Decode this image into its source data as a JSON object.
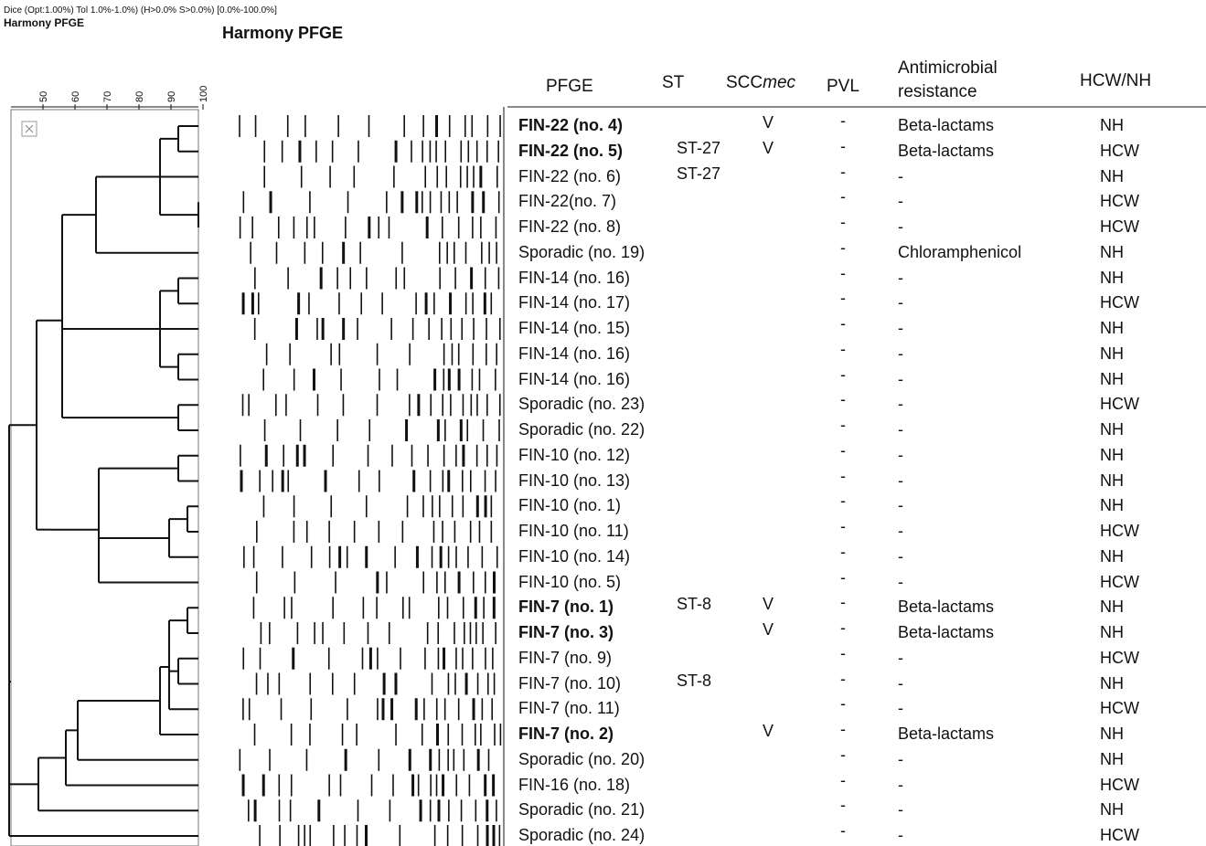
{
  "header": {
    "settings": "Dice (Opt:1.00%) Tol 1.0%-1.0%) (H>0.0% S>0.0%) [0.0%-100.0%]",
    "small_title": "Harmony PFGE",
    "big_title": "Harmony PFGE"
  },
  "scale": [
    "50",
    "60",
    "70",
    "80",
    "90",
    "100"
  ],
  "table": {
    "columns": {
      "pfge": "PFGE",
      "st": "ST",
      "sccmec": {
        "text": "SCC",
        "italic": "mec"
      },
      "pvl": "PVL",
      "resistance": "Antimicrobial resistance",
      "hcw_nh": "HCW/NH"
    },
    "rows": [
      {
        "pfge": "FIN-22 (no. 4)",
        "bold": true,
        "sccmec": "V",
        "pvl": "-",
        "resistance": "Beta-lactams",
        "hcw_nh": "NH"
      },
      {
        "pfge": "FIN-22 (no. 5)",
        "bold": true,
        "st": "ST-27",
        "sccmec": "V",
        "pvl": "-",
        "resistance": "Beta-lactams",
        "hcw_nh": "HCW"
      },
      {
        "pfge": "FIN-22 (no. 6)",
        "st": "ST-27",
        "pvl": "-",
        "resistance": "-",
        "hcw_nh": "NH"
      },
      {
        "pfge": "FIN-22(no. 7)",
        "pvl": "-",
        "resistance": "-",
        "hcw_nh": "HCW"
      },
      {
        "pfge": "FIN-22 (no. 8)",
        "pvl": "-",
        "resistance": "-",
        "hcw_nh": "HCW"
      },
      {
        "pfge": "Sporadic (no. 19)",
        "pvl": "-",
        "resistance": "Chloramphenicol",
        "hcw_nh": "NH"
      },
      {
        "pfge": "FIN-14 (no. 16)",
        "pvl": "-",
        "resistance": "-",
        "hcw_nh": "NH"
      },
      {
        "pfge": "FIN-14 (no. 17)",
        "pvl": "-",
        "resistance": "-",
        "hcw_nh": "HCW"
      },
      {
        "pfge": "FIN-14 (no. 15)",
        "pvl": "-",
        "resistance": "-",
        "hcw_nh": "NH"
      },
      {
        "pfge": "FIN-14 (no. 16)",
        "pvl": "-",
        "resistance": "-",
        "hcw_nh": "NH"
      },
      {
        "pfge": "FIN-14 (no. 16)",
        "pvl": "-",
        "resistance": "-",
        "hcw_nh": "NH"
      },
      {
        "pfge": "Sporadic (no. 23)",
        "pvl": "-",
        "resistance": "-",
        "hcw_nh": "HCW"
      },
      {
        "pfge": "Sporadic (no. 22)",
        "pvl": "-",
        "resistance": "-",
        "hcw_nh": "NH"
      },
      {
        "pfge": "FIN-10 (no. 12)",
        "pvl": "-",
        "resistance": "-",
        "hcw_nh": "NH"
      },
      {
        "pfge": "FIN-10 (no. 13)",
        "pvl": "-",
        "resistance": "-",
        "hcw_nh": "NH"
      },
      {
        "pfge": "FIN-10 (no. 1)",
        "pvl": "-",
        "resistance": "-",
        "hcw_nh": "NH"
      },
      {
        "pfge": "FIN-10 (no. 11)",
        "pvl": "-",
        "resistance": "-",
        "hcw_nh": "HCW"
      },
      {
        "pfge": "FIN-10 (no. 14)",
        "pvl": "-",
        "resistance": "-",
        "hcw_nh": "NH"
      },
      {
        "pfge": "FIN-10 (no. 5)",
        "pvl": "-",
        "resistance": "-",
        "hcw_nh": "HCW"
      },
      {
        "pfge": "FIN-7 (no. 1)",
        "bold": true,
        "st": "ST-8",
        "sccmec": "V",
        "pvl": "-",
        "resistance": "Beta-lactams",
        "hcw_nh": "NH"
      },
      {
        "pfge": "FIN-7 (no. 3)",
        "bold": true,
        "sccmec": "V",
        "pvl": "-",
        "resistance": "Beta-lactams",
        "hcw_nh": "NH"
      },
      {
        "pfge": "FIN-7 (no. 9)",
        "pvl": "-",
        "resistance": "-",
        "hcw_nh": "HCW"
      },
      {
        "pfge": "FIN-7 (no. 10)",
        "st": "ST-8",
        "pvl": "-",
        "resistance": "-",
        "hcw_nh": "NH"
      },
      {
        "pfge": "FIN-7 (no. 11)",
        "pvl": "-",
        "resistance": "-",
        "hcw_nh": "HCW"
      },
      {
        "pfge": "FIN-7 (no. 2)",
        "bold": true,
        "sccmec": "V",
        "pvl": "-",
        "resistance": "Beta-lactams",
        "hcw_nh": "NH"
      },
      {
        "pfge": "Sporadic (no. 20)",
        "pvl": "-",
        "resistance": "-",
        "hcw_nh": "NH"
      },
      {
        "pfge": "FIN-16 (no. 18)",
        "pvl": "-",
        "resistance": "-",
        "hcw_nh": "HCW"
      },
      {
        "pfge": "Sporadic (no. 21)",
        "pvl": "-",
        "resistance": "-",
        "hcw_nh": "NH"
      },
      {
        "pfge": "Sporadic (no. 24)",
        "pvl": "-",
        "resistance": "-",
        "hcw_nh": "HCW"
      }
    ]
  }
}
